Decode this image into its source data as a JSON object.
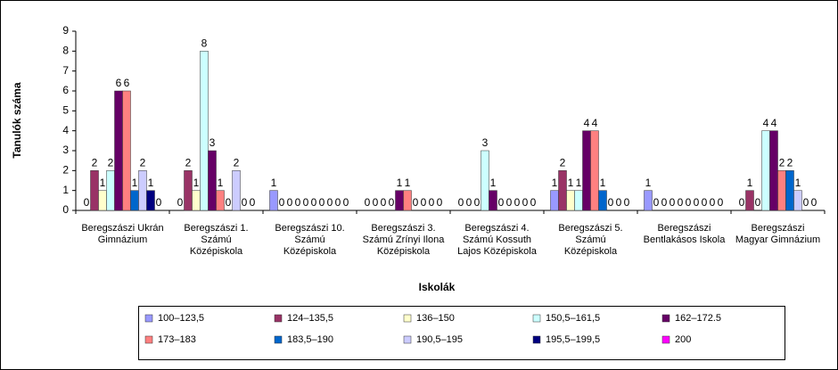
{
  "chart_data": {
    "type": "bar",
    "x_label": "Iskolák",
    "y_label": "Tanulók száma",
    "categories": [
      "Beregszászi Ukrán Gimnázium",
      "Beregszászi 1. Számú Középiskola",
      "Beregszászi 10. Számú Középiskola",
      "Beregszászi 3. Számú Zrínyi Ilona Középiskola",
      "Beregszászi 4. Számú Kossuth Lajos Középiskola",
      "Beregszászi 5. Számú Középiskola",
      "Beregszászi Bentlakásos Iskola",
      "Beregszászi Magyar Gimnázium"
    ],
    "series": [
      {
        "name": "100–123,5",
        "color": "#9999ff",
        "values": [
          0,
          0,
          1,
          0,
          0,
          1,
          1,
          0
        ]
      },
      {
        "name": "124–135,5",
        "color": "#993366",
        "values": [
          2,
          2,
          0,
          0,
          0,
          2,
          0,
          1
        ]
      },
      {
        "name": "136–150",
        "color": "#ffffcc",
        "values": [
          1,
          1,
          0,
          0,
          0,
          1,
          0,
          0
        ]
      },
      {
        "name": "150,5–161,5",
        "color": "#ccffff",
        "values": [
          2,
          8,
          0,
          0,
          3,
          1,
          0,
          4
        ]
      },
      {
        "name": "162–172.5",
        "color": "#660066",
        "values": [
          6,
          3,
          0,
          1,
          1,
          4,
          0,
          4
        ]
      },
      {
        "name": "173–183",
        "color": "#ff8080",
        "values": [
          6,
          1,
          0,
          1,
          0,
          4,
          0,
          2
        ]
      },
      {
        "name": "183,5–190",
        "color": "#0066cc",
        "values": [
          1,
          0,
          0,
          0,
          0,
          1,
          0,
          2
        ]
      },
      {
        "name": "190,5–195",
        "color": "#ccccff",
        "values": [
          2,
          2,
          0,
          0,
          0,
          0,
          0,
          1
        ]
      },
      {
        "name": "195,5–199,5",
        "color": "#000080",
        "values": [
          1,
          0,
          0,
          0,
          0,
          0,
          0,
          0
        ]
      },
      {
        "name": "200",
        "color": "#ff00ff",
        "values": [
          0,
          0,
          0,
          0,
          0,
          0,
          0,
          0
        ]
      }
    ],
    "ylim": [
      0,
      9
    ],
    "yticks": [
      0,
      1,
      2,
      3,
      4,
      5,
      6,
      7,
      8,
      9
    ],
    "grid": false,
    "legend": "bottom"
  }
}
